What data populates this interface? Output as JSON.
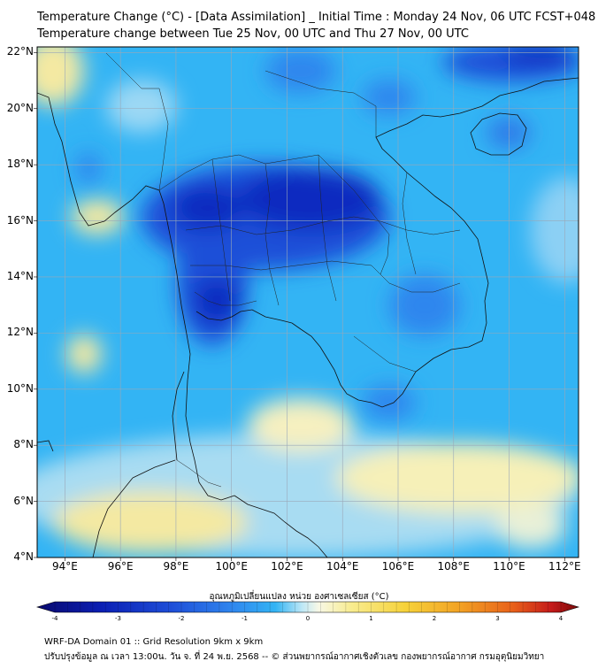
{
  "header": {
    "title_line1": "Temperature Change (°C) - [Data Assimilation] _ Initial Time : Monday 24 Nov, 06 UTC FCST+048",
    "title_line2": "Temperature change between Tue 25 Nov, 00 UTC and Thu 27 Nov, 00 UTC"
  },
  "map": {
    "lat_labels": [
      "22°N",
      "20°N",
      "18°N",
      "16°N",
      "14°N",
      "12°N",
      "10°N",
      "8°N",
      "6°N",
      "4°N"
    ],
    "lon_labels": [
      "94°E",
      "96°E",
      "98°E",
      "100°E",
      "102°E",
      "104°E",
      "106°E",
      "108°E",
      "110°E",
      "112°E"
    ],
    "lat_range": [
      4,
      22.2
    ],
    "lon_range": [
      93,
      112.5
    ]
  },
  "colorbar": {
    "title": "อุณหภูมิเปลี่ยนแปลง หน่วย องศาเซลเซียส (°C)",
    "ticks": [
      "-4",
      "-3",
      "-2",
      "-1",
      "0",
      "1",
      "2",
      "3",
      "4"
    ],
    "range": [
      -4,
      4
    ],
    "colors": [
      "#0a0a6e",
      "#0b1fb4",
      "#1f4fd8",
      "#2f86ee",
      "#33b4f4",
      "#7fd4f4",
      "#d8f0f4",
      "#fbfbd8",
      "#f8ec90",
      "#f6d23a",
      "#f2a224",
      "#e8601a",
      "#c41a1a",
      "#7a0a0a"
    ]
  },
  "footer": {
    "line1": "WRF-DA Domain 01 :: Grid Resolution 9km x 9km",
    "line2": "ปรับปรุงข้อมูล ณ เวลา 13:00น. วัน จ. ที่ 24 พ.ย. 2568 -- © ส่วนพยากรณ์อากาศเชิงตัวเลข กองพยากรณ์อากาศ กรมอุตุนิยมวิทยา"
  }
}
